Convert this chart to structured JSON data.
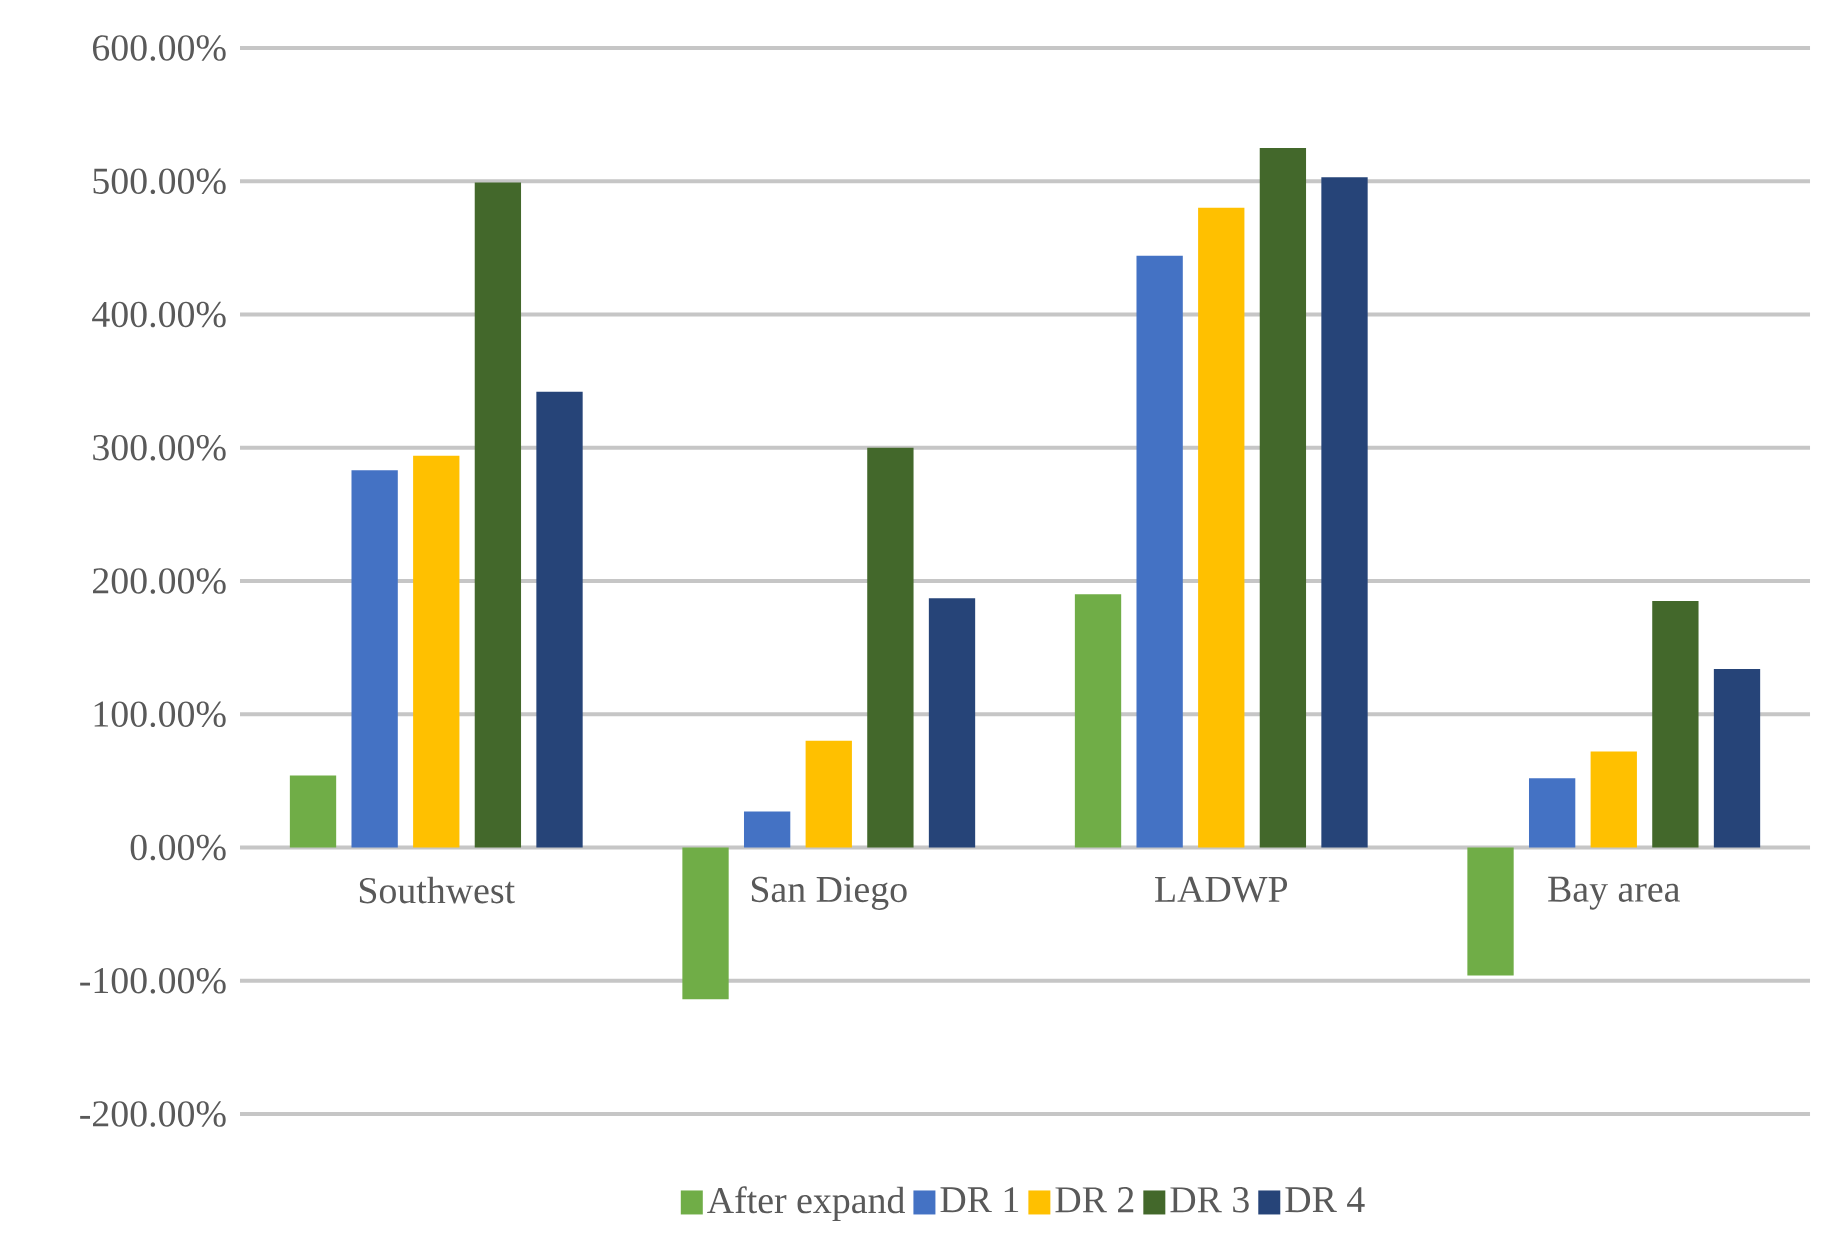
{
  "chart_data": {
    "type": "bar",
    "categories": [
      "Southwest",
      "San Diego",
      "LADWP",
      "Bay area"
    ],
    "series": [
      {
        "name": "After expand",
        "color": "#70ad47",
        "values": [
          54,
          -114,
          190,
          -96
        ]
      },
      {
        "name": "DR 1",
        "color": "#4472c4",
        "values": [
          283,
          27,
          444,
          52
        ]
      },
      {
        "name": "DR 2",
        "color": "#ffc000",
        "values": [
          294,
          80,
          480,
          72
        ]
      },
      {
        "name": "DR 3",
        "color": "#43682b",
        "values": [
          499,
          300,
          525,
          185
        ]
      },
      {
        "name": "DR 4",
        "color": "#264478",
        "values": [
          342,
          187,
          503,
          134
        ]
      }
    ],
    "ylim": [
      -200,
      600
    ],
    "yticks": [
      {
        "value": -200,
        "label": "-200.00%"
      },
      {
        "value": -100,
        "label": "-100.00%"
      },
      {
        "value": 0,
        "label": "0.00%"
      },
      {
        "value": 100,
        "label": "100.00%"
      },
      {
        "value": 200,
        "label": "200.00%"
      },
      {
        "value": 300,
        "label": "300.00%"
      },
      {
        "value": 400,
        "label": "400.00%"
      },
      {
        "value": 500,
        "label": "500.00%"
      },
      {
        "value": 600,
        "label": "600.00%"
      }
    ],
    "grid": "y",
    "legend": "bottom"
  }
}
